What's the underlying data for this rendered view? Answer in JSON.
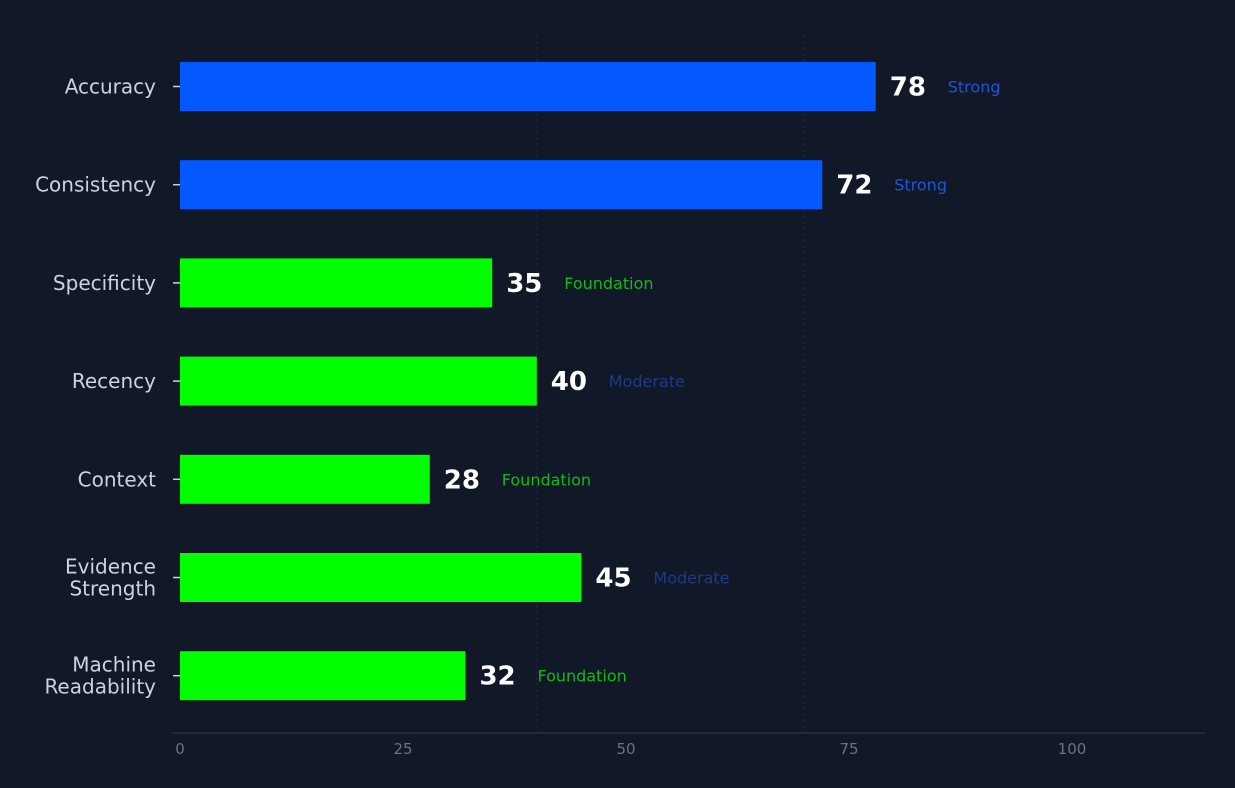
{
  "chart_data": {
    "type": "bar",
    "orientation": "horizontal",
    "categories": [
      [
        "Accuracy"
      ],
      [
        "Consistency"
      ],
      [
        "Specificity"
      ],
      [
        "Recency"
      ],
      [
        "Context"
      ],
      [
        "Evidence",
        "Strength"
      ],
      [
        "Machine",
        "Readability"
      ]
    ],
    "values": [
      78,
      72,
      35,
      40,
      28,
      45,
      32
    ],
    "value_labels": [
      "78",
      "72",
      "35",
      "40",
      "28",
      "45",
      "32"
    ],
    "status": [
      "Strong",
      "Strong",
      "Foundation",
      "Moderate",
      "Foundation",
      "Moderate",
      "Foundation"
    ],
    "bar_colors": [
      "#0358ff",
      "#0358ff",
      "#00ff00",
      "#00ff00",
      "#00ff00",
      "#00ff00",
      "#00ff00"
    ],
    "status_colors": {
      "Strong": "#1e56d6",
      "Moderate": "#1e3a8a",
      "Foundation": "#16b816"
    },
    "xlim": [
      0,
      115
    ],
    "xticks": [
      0,
      25,
      50,
      75,
      100
    ],
    "reference_lines": [
      40,
      70
    ],
    "grid": false,
    "title": "",
    "xlabel": "",
    "ylabel": ""
  }
}
